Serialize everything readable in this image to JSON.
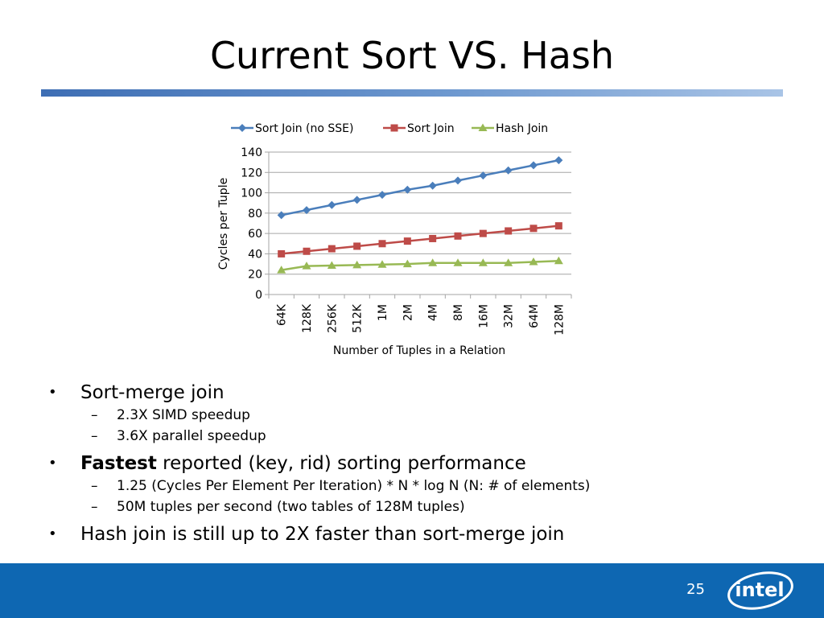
{
  "slide": {
    "title": "Current Sort VS. Hash",
    "page_number": "25",
    "logo_text": "intel"
  },
  "colors": {
    "title_rule": "#3e6eb4",
    "footer_bar": "#0e67b2",
    "gridline": "#a6a6a6"
  },
  "bullets": [
    {
      "text": "Sort-merge join",
      "bold_prefix": "",
      "subitems": [
        "2.3X SIMD speedup",
        "3.6X parallel speedup"
      ]
    },
    {
      "bold_prefix": "Fastest",
      "text": " reported (key, rid) sorting performance",
      "subitems": [
        "1.25 (Cycles Per Element Per Iteration) * N * log N (N: # of elements)",
        "50M tuples per second (two tables of 128M tuples)"
      ]
    },
    {
      "text": "Hash join is still up to 2X faster than sort-merge join",
      "bold_prefix": "",
      "subitems": []
    }
  ],
  "chart_data": {
    "type": "line",
    "xlabel": "Number of Tuples in a Relation",
    "ylabel": "Cycles per Tuple",
    "ylim": [
      0,
      140
    ],
    "yticks": [
      0,
      20,
      40,
      60,
      80,
      100,
      120,
      140
    ],
    "grid": true,
    "legend": "top",
    "categories": [
      "64K",
      "128K",
      "256K",
      "512K",
      "1M",
      "2M",
      "4M",
      "8M",
      "16M",
      "32M",
      "64M",
      "128M"
    ],
    "series": [
      {
        "name": "Sort Join (no SSE)",
        "color": "#4a7ebb",
        "marker": "diamond",
        "values": [
          78,
          83,
          88,
          93,
          98,
          103,
          107,
          112,
          117,
          122,
          127,
          132
        ]
      },
      {
        "name": "Sort Join",
        "color": "#be4b48",
        "marker": "square",
        "values": [
          40,
          42.5,
          45,
          47.5,
          50,
          52.5,
          55,
          57.5,
          60,
          62.5,
          65,
          67.5
        ]
      },
      {
        "name": "Hash Join",
        "color": "#98b954",
        "marker": "triangle",
        "values": [
          24,
          28,
          28.5,
          29,
          29.5,
          30,
          31,
          31,
          31,
          31,
          32,
          33
        ]
      }
    ]
  }
}
